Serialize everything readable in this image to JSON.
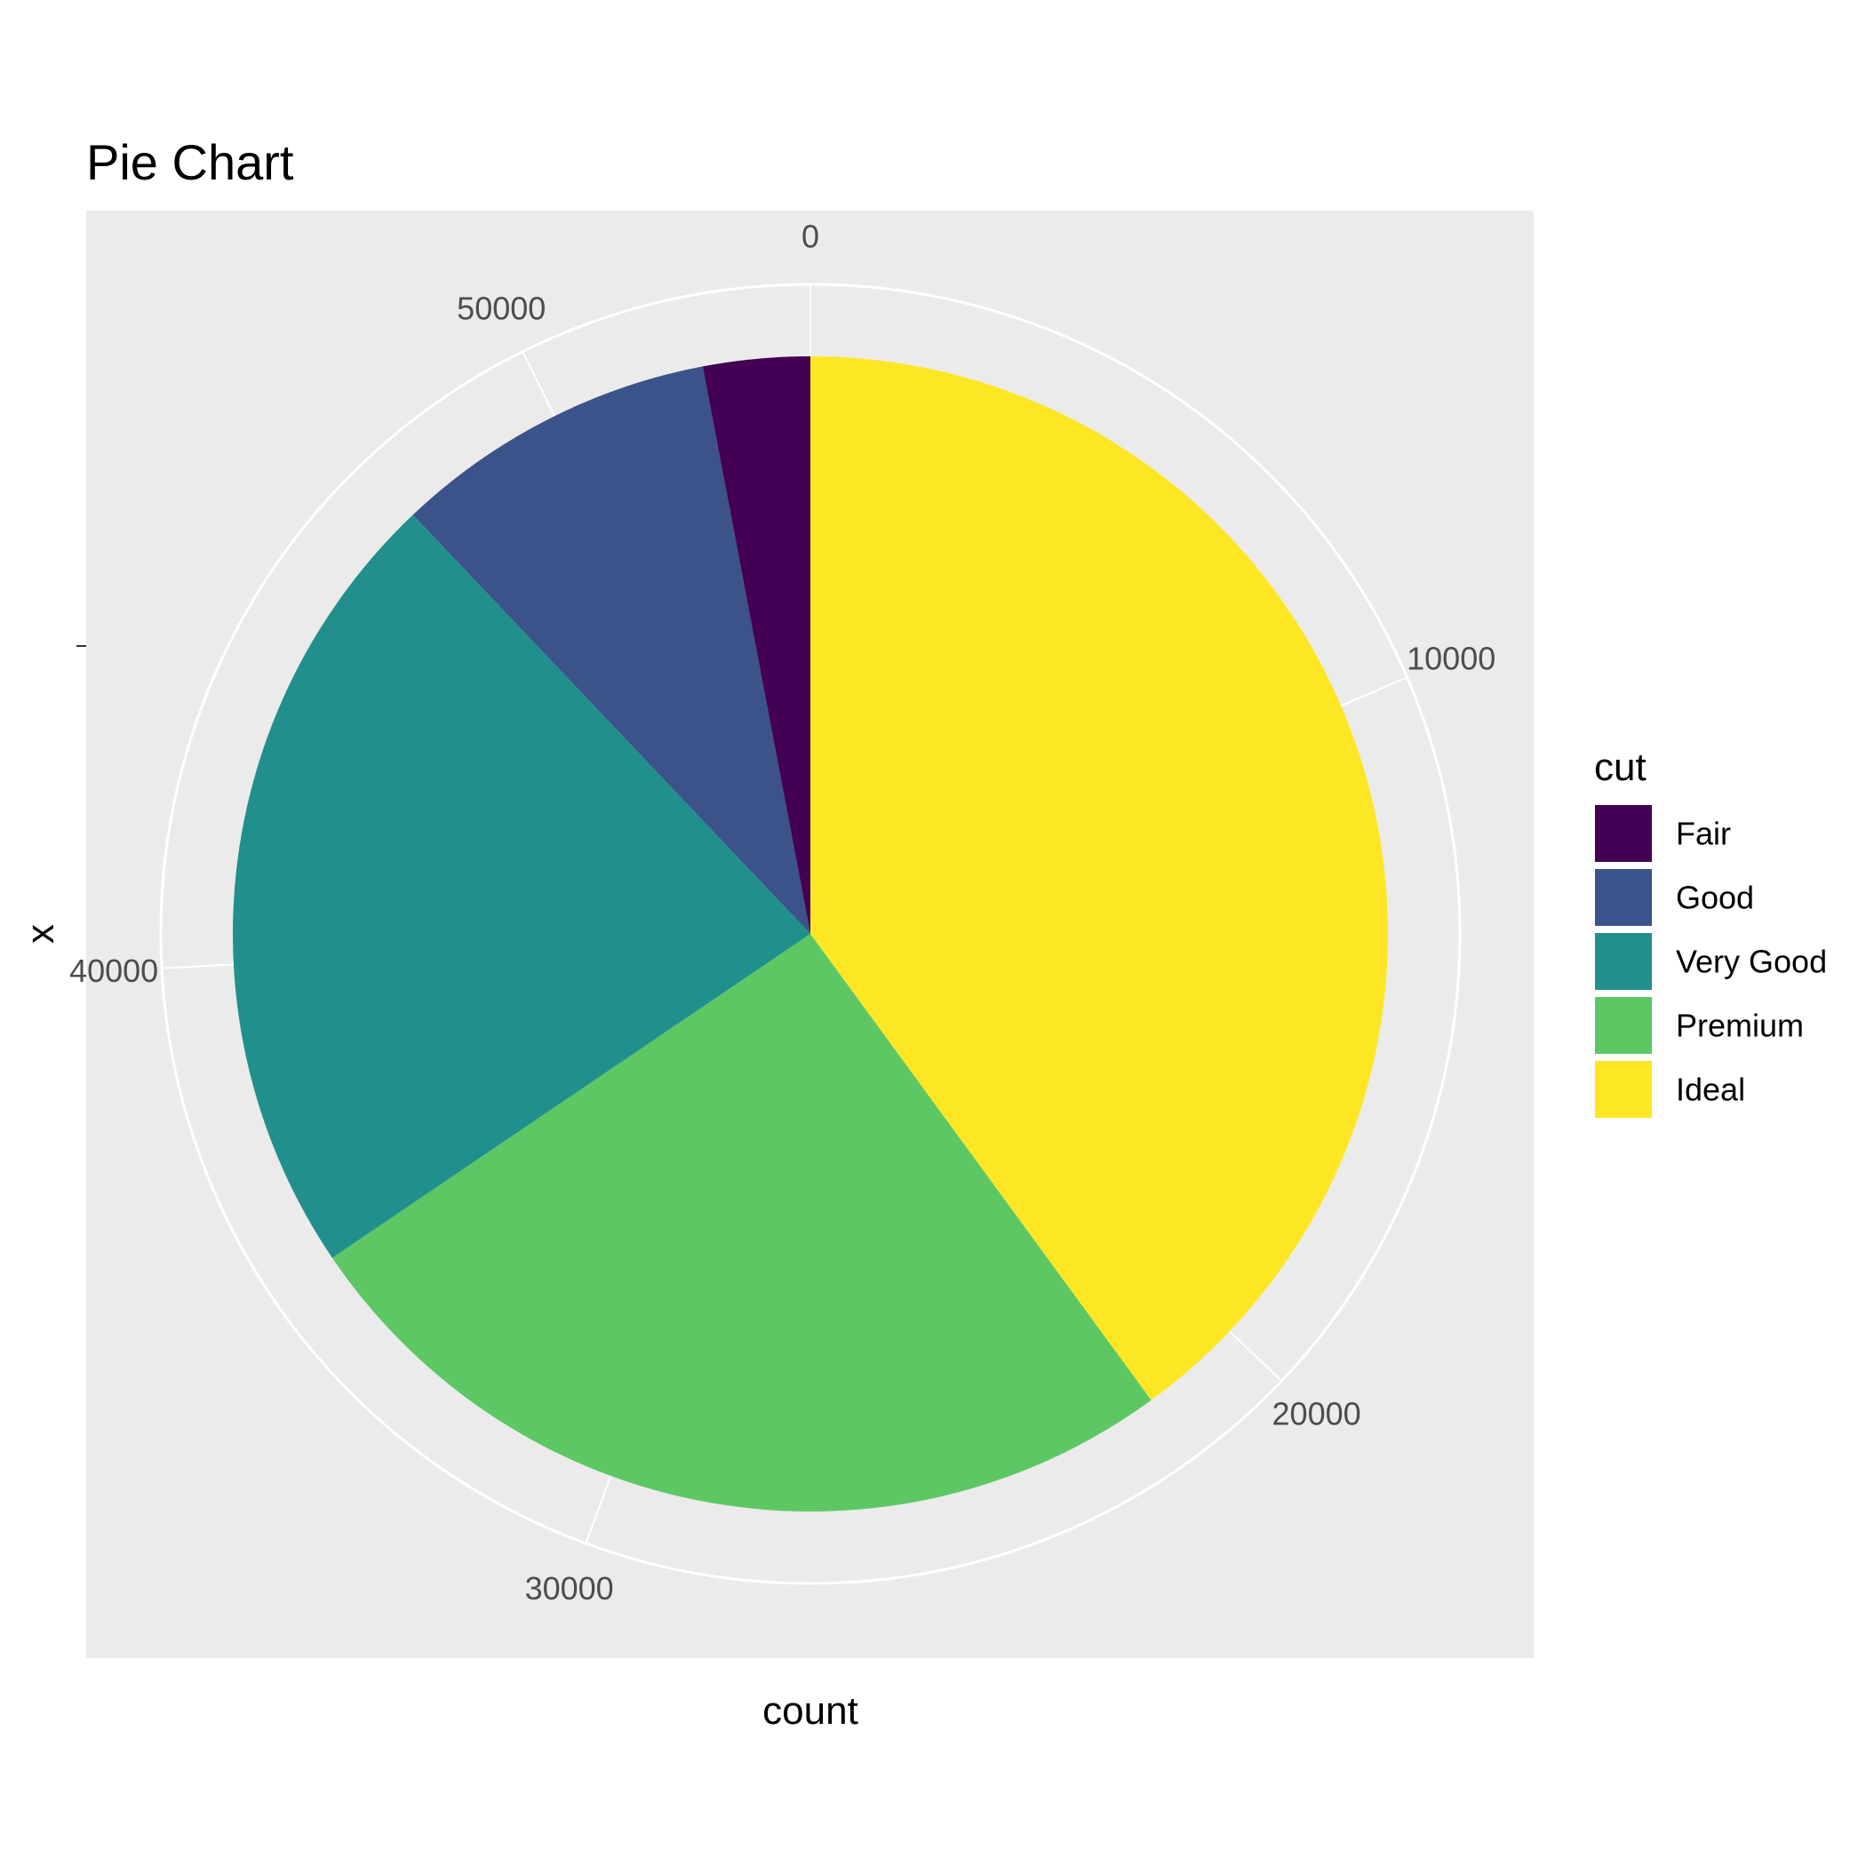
{
  "chart_data": {
    "type": "pie",
    "title": "Pie Chart",
    "xlabel": "count",
    "ylabel": "x",
    "total": 53940,
    "theta_ticks": [
      0,
      10000,
      20000,
      30000,
      40000,
      50000
    ],
    "theta_tick_labels": [
      "0",
      "10000",
      "20000",
      "30000",
      "40000",
      "50000"
    ],
    "categories": [
      "Fair",
      "Good",
      "Very Good",
      "Premium",
      "Ideal"
    ],
    "values": [
      1610,
      4906,
      12082,
      13791,
      21551
    ],
    "colors": [
      "#440154",
      "#3B528B",
      "#21908C",
      "#5DC863",
      "#FDE725"
    ],
    "stack_order": [
      "Ideal",
      "Premium",
      "Very Good",
      "Good",
      "Fair"
    ],
    "legend": {
      "title": "cut",
      "position": "right",
      "entries": [
        "Fair",
        "Good",
        "Very Good",
        "Premium",
        "Ideal"
      ]
    },
    "panel_background": "#EBEBEB",
    "grid_color": "#FFFFFF",
    "grid": true
  }
}
